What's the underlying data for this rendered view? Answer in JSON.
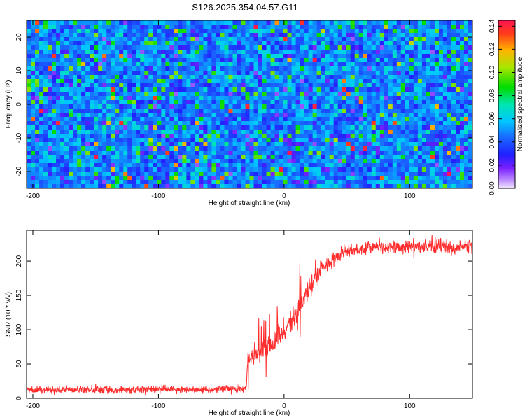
{
  "title": "S126.2025.354.04.57.G11",
  "chart_data": [
    {
      "type": "heatmap",
      "name": "spectrogram",
      "xlabel": "Height of straight line (km)",
      "ylabel": "Frequency (Hz)",
      "xlim": [
        -205,
        150
      ],
      "ylim": [
        -25,
        25
      ],
      "xticks": [
        -200,
        -100,
        0,
        100
      ],
      "yticks": [
        -20,
        -10,
        0,
        10,
        20
      ],
      "colorbar": {
        "label": "Normalized spectral amplitude",
        "range": [
          0,
          0.145
        ],
        "ticks": [
          "0.00",
          "0.02",
          "0.04",
          "0.06",
          "0.08",
          "0.10",
          "0.12",
          "0.14"
        ],
        "tick_values": [
          0,
          0.02,
          0.04,
          0.06,
          0.08,
          0.1,
          0.12,
          0.14
        ]
      },
      "pattern": "noise-like speckle, amplitude mostly 0.02-0.06, isolated peaks near 0.10-0.14"
    },
    {
      "type": "line",
      "name": "snr",
      "xlabel": "Height of straight line (km)",
      "ylabel": "SNR (10 * v/v)",
      "xlim": [
        -205,
        150
      ],
      "ylim": [
        0,
        245
      ],
      "xticks": [
        -200,
        -100,
        0,
        100
      ],
      "yticks": [
        0,
        50,
        100,
        150,
        200
      ],
      "color": "#ff2d2d",
      "trend": [
        {
          "x": -205,
          "y": 12
        },
        {
          "x": -60,
          "y": 13
        },
        {
          "x": -30,
          "y": 15
        },
        {
          "x": -29,
          "y": 58
        },
        {
          "x": -20,
          "y": 65
        },
        {
          "x": -10,
          "y": 80
        },
        {
          "x": 0,
          "y": 100
        },
        {
          "x": 10,
          "y": 125
        },
        {
          "x": 20,
          "y": 160
        },
        {
          "x": 30,
          "y": 188
        },
        {
          "x": 40,
          "y": 205
        },
        {
          "x": 50,
          "y": 215
        },
        {
          "x": 70,
          "y": 220
        },
        {
          "x": 100,
          "y": 222
        },
        {
          "x": 130,
          "y": 221
        },
        {
          "x": 150,
          "y": 219
        }
      ]
    }
  ]
}
